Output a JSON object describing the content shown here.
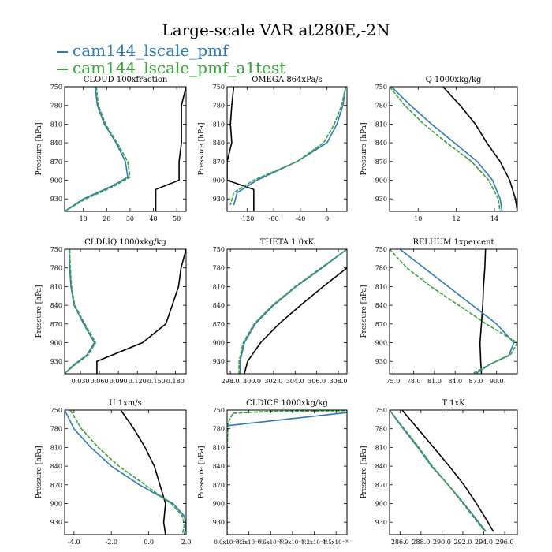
{
  "title": "Large-scale VAR at280E,-2N",
  "legend": [
    {
      "label": "cam144_lscale_pmf",
      "color": "#2b7bba"
    },
    {
      "label": "cam144_lscale_pmf_a1test",
      "color": "#3aa23a"
    }
  ],
  "colors": {
    "ref": "#000000",
    "pmf": "#2b7bba",
    "a1test": "#3aa23a"
  },
  "chart_data": [
    {
      "type": "line",
      "title": "CLOUD  100xfraction",
      "ylabel": "Pressure [hPa]",
      "ylim": [
        950,
        750
      ],
      "xlim": [
        2,
        54
      ],
      "xticks": [
        10,
        20,
        30,
        40,
        50
      ],
      "xticklabels": [
        "10",
        "20",
        "30",
        "40",
        "50"
      ],
      "yticks": [
        750,
        780,
        810,
        840,
        870,
        900,
        930
      ],
      "grid": false,
      "series": [
        {
          "name": "ref",
          "y": [
            750,
            780,
            810,
            840,
            870,
            900,
            915,
            930,
            950
          ],
          "x": [
            54,
            52,
            52,
            52,
            51,
            51,
            41,
            41,
            41
          ]
        },
        {
          "name": "pmf",
          "y": [
            750,
            780,
            810,
            840,
            870,
            895,
            910,
            930,
            950
          ],
          "x": [
            15,
            16,
            19,
            24,
            28,
            29,
            22,
            10,
            2
          ]
        },
        {
          "name": "a1test",
          "y": [
            750,
            780,
            810,
            840,
            870,
            895,
            910,
            930,
            950
          ],
          "x": [
            15.5,
            16.5,
            19.5,
            24.5,
            29,
            30,
            23,
            11,
            2
          ]
        }
      ]
    },
    {
      "type": "line",
      "title": "OMEGA  864xPa/s",
      "ylabel": "Pressure [hPa]",
      "ylim": [
        950,
        750
      ],
      "xlim": [
        -150,
        30
      ],
      "xticks": [
        -120,
        -80,
        -40,
        0
      ],
      "xticklabels": [
        "-120",
        "-80",
        "-40",
        "0"
      ],
      "yticks": [
        750,
        780,
        810,
        840,
        870,
        900,
        930
      ],
      "grid": false,
      "series": [
        {
          "name": "ref",
          "y": [
            750,
            780,
            810,
            840,
            870,
            900,
            915,
            935,
            950
          ],
          "x": [
            -140,
            -143,
            -145,
            -143,
            -150,
            -150,
            -110,
            -110,
            -110
          ]
        },
        {
          "name": "pmf",
          "y": [
            750,
            780,
            810,
            840,
            870,
            900,
            920,
            940
          ],
          "x": [
            28,
            24,
            15,
            0,
            -45,
            -105,
            -135,
            -140
          ]
        },
        {
          "name": "a1test",
          "y": [
            750,
            780,
            810,
            840,
            870,
            900,
            920,
            940
          ],
          "x": [
            28,
            22,
            11,
            -5,
            -45,
            -110,
            -140,
            -145
          ]
        }
      ]
    },
    {
      "type": "line",
      "title": "Q  1000xkg/kg",
      "ylabel": "Pressure [hPa]",
      "ylim": [
        950,
        750
      ],
      "xlim": [
        8.5,
        15.2
      ],
      "xticks": [
        10,
        12,
        14
      ],
      "xticklabels": [
        "10",
        "12",
        "14"
      ],
      "yticks": [
        750,
        780,
        810,
        840,
        870,
        900,
        930
      ],
      "grid": false,
      "series": [
        {
          "name": "ref",
          "y": [
            750,
            780,
            810,
            840,
            870,
            900,
            930,
            950
          ],
          "x": [
            11.3,
            12.2,
            13.0,
            13.6,
            14.3,
            14.8,
            15.1,
            15.2
          ]
        },
        {
          "name": "pmf",
          "y": [
            750,
            780,
            810,
            840,
            870,
            900,
            930,
            950
          ],
          "x": [
            8.6,
            9.6,
            10.7,
            11.9,
            13.1,
            13.9,
            14.3,
            14.4
          ]
        },
        {
          "name": "a1test",
          "y": [
            750,
            780,
            810,
            840,
            870,
            900,
            930,
            950
          ],
          "x": [
            8.5,
            9.3,
            10.3,
            11.5,
            12.8,
            13.7,
            14.2,
            14.3
          ]
        }
      ]
    },
    {
      "type": "line",
      "title": "CLDLIQ  1000xkg/kg",
      "ylabel": "Pressure [hPa]",
      "ylim": [
        950,
        750
      ],
      "xlim": [
        0.005,
        0.197
      ],
      "xticks": [
        0.03,
        0.06,
        0.09,
        0.12,
        0.15,
        0.18
      ],
      "xticklabels": [
        "0.030",
        "0.060",
        "0.090",
        "0.120",
        "0.150",
        "0.180"
      ],
      "yticks": [
        750,
        780,
        810,
        840,
        870,
        900,
        930
      ],
      "grid": false,
      "series": [
        {
          "name": "ref",
          "y": [
            750,
            780,
            810,
            840,
            870,
            900,
            930,
            950
          ],
          "x": [
            0.197,
            0.189,
            0.185,
            0.175,
            0.165,
            0.128,
            0.056,
            0.056
          ]
        },
        {
          "name": "pmf",
          "y": [
            750,
            780,
            810,
            840,
            870,
            900,
            920,
            935,
            950
          ],
          "x": [
            0.012,
            0.013,
            0.015,
            0.02,
            0.035,
            0.052,
            0.04,
            0.02,
            0.005
          ]
        },
        {
          "name": "a1test",
          "y": [
            750,
            780,
            810,
            840,
            870,
            900,
            920,
            935,
            950
          ],
          "x": [
            0.013,
            0.014,
            0.016,
            0.021,
            0.037,
            0.054,
            0.042,
            0.022,
            0.005
          ]
        }
      ]
    },
    {
      "type": "line",
      "title": "THETA  1.0xK",
      "ylabel": "",
      "ylim": [
        950,
        750
      ],
      "xlim": [
        297.7,
        308.8
      ],
      "xticks": [
        298,
        300,
        302,
        304,
        306,
        308
      ],
      "xticklabels": [
        "298.0",
        "300.0",
        "302.0",
        "304.0",
        "306.0",
        "308.0"
      ],
      "yticks": [
        750,
        780,
        810,
        840,
        870,
        900,
        930
      ],
      "grid": false,
      "series": [
        {
          "name": "ref",
          "y": [
            780,
            810,
            840,
            870,
            900,
            930,
            950
          ],
          "x": [
            308.8,
            306.6,
            304.5,
            302.5,
            300.8,
            299.6,
            299.3
          ]
        },
        {
          "name": "pmf",
          "y": [
            750,
            780,
            810,
            840,
            870,
            900,
            930,
            950
          ],
          "x": [
            308.8,
            306.5,
            304.1,
            302.0,
            300.3,
            299.3,
            298.9,
            298.9
          ]
        },
        {
          "name": "a1test",
          "y": [
            750,
            780,
            810,
            840,
            870,
            900,
            930,
            950
          ],
          "x": [
            308.8,
            306.4,
            304.0,
            301.9,
            300.2,
            299.2,
            298.8,
            298.8
          ]
        }
      ]
    },
    {
      "type": "line",
      "title": "RELHUM  1xpercent",
      "ylabel": "Pressure [hPa]",
      "ylim": [
        950,
        750
      ],
      "xlim": [
        74.5,
        93
      ],
      "xticks": [
        75,
        78,
        81,
        84,
        87,
        90
      ],
      "xticklabels": [
        "75.0",
        "78.0",
        "81.0",
        "84.0",
        "87.0",
        "90.0"
      ],
      "yticks": [
        750,
        780,
        810,
        840,
        870,
        900,
        930
      ],
      "grid": false,
      "series": [
        {
          "name": "ref",
          "y": [
            750,
            780,
            810,
            840,
            870,
            900,
            930,
            950
          ],
          "x": [
            88.4,
            88.3,
            88.1,
            88.0,
            87.8,
            87.6,
            87.7,
            87.8
          ]
        },
        {
          "name": "pmf",
          "y": [
            750,
            780,
            810,
            840,
            870,
            900,
            920,
            935,
            950
          ],
          "x": [
            76.0,
            79.5,
            83.0,
            86.5,
            90.0,
            92.5,
            91.8,
            89.0,
            87.0
          ]
        },
        {
          "name": "a1test",
          "y": [
            750,
            780,
            810,
            840,
            870,
            900,
            920,
            935,
            950
          ],
          "x": [
            74.5,
            77.0,
            80.5,
            84.5,
            88.5,
            93.0,
            92.0,
            89.0,
            86.5
          ]
        }
      ]
    },
    {
      "type": "line",
      "title": "U  1xm/s",
      "ylabel": "Pressure [hPa]",
      "ylim": [
        950,
        750
      ],
      "xlim": [
        -4.5,
        2.0
      ],
      "xticks": [
        -4,
        -2,
        0,
        2
      ],
      "xticklabels": [
        "-4.0",
        "-2.0",
        "0.0",
        "2.0"
      ],
      "yticks": [
        750,
        780,
        810,
        840,
        870,
        900,
        930
      ],
      "grid": false,
      "series": [
        {
          "name": "ref",
          "y": [
            750,
            780,
            810,
            840,
            870,
            900,
            930,
            950
          ],
          "x": [
            -1.5,
            -0.8,
            -0.2,
            0.3,
            0.6,
            0.9,
            0.8,
            0.9
          ]
        },
        {
          "name": "pmf",
          "y": [
            750,
            780,
            810,
            840,
            870,
            900,
            920,
            935,
            950
          ],
          "x": [
            -4.5,
            -4.0,
            -3.1,
            -2.0,
            -0.5,
            1.3,
            1.9,
            2.0,
            1.9
          ]
        },
        {
          "name": "a1test",
          "y": [
            750,
            780,
            810,
            840,
            870,
            900,
            920,
            935,
            950
          ],
          "x": [
            -4.2,
            -3.6,
            -2.7,
            -1.6,
            -0.2,
            1.2,
            1.8,
            1.9,
            1.8
          ]
        }
      ]
    },
    {
      "type": "line",
      "title": "CLDICE  1000xkg/kg",
      "ylabel": "Pressure [hPa]",
      "ylim": [
        950,
        750
      ],
      "xlim": [
        0,
        1.65e-30
      ],
      "xticks": [
        0,
        3e-31,
        6e-31,
        9e-31,
        1.2e-30,
        1.5e-30
      ],
      "xticklabels": [
        "0.0x10⁻³⁰",
        "0.3x10⁻³⁰",
        "0.6x10⁻³⁰",
        "0.9x10⁻³⁰",
        "1.2x10⁻³⁰",
        "1.5x10⁻³⁰"
      ],
      "yticks": [
        750,
        780,
        810,
        840,
        870,
        900,
        930
      ],
      "grid": false,
      "series": [
        {
          "name": "pmf",
          "y": [
            775,
            754
          ],
          "x": [
            0,
            1.65e-30
          ]
        },
        {
          "name": "a1test",
          "y": [
            950,
            810,
            770,
            755,
            752,
            751
          ],
          "x": [
            0,
            0,
            1.5e-32,
            8e-32,
            6e-31,
            1.65e-30
          ]
        }
      ]
    },
    {
      "type": "line",
      "title": "T  1xK",
      "ylabel": "Pressure [hPa]",
      "ylim": [
        950,
        750
      ],
      "xlim": [
        285,
        297.2
      ],
      "xticks": [
        286,
        288,
        290,
        292,
        294,
        296
      ],
      "xticklabels": [
        "286.0",
        "288.0",
        "290.0",
        "292.0",
        "294.0",
        "296.0"
      ],
      "yticks": [
        750,
        780,
        810,
        840,
        870,
        900,
        930
      ],
      "grid": false,
      "series": [
        {
          "name": "ref",
          "y": [
            750,
            780,
            810,
            840,
            870,
            900,
            930,
            945
          ],
          "x": [
            286.2,
            287.7,
            289.2,
            290.7,
            292.1,
            293.3,
            294.4,
            294.9
          ]
        },
        {
          "name": "pmf",
          "y": [
            750,
            780,
            810,
            840,
            870,
            900,
            930,
            945
          ],
          "x": [
            285.0,
            286.3,
            287.7,
            289.0,
            290.6,
            292.1,
            293.5,
            294.2
          ]
        },
        {
          "name": "a1test",
          "y": [
            750,
            780,
            810,
            840,
            870,
            900,
            930,
            945
          ],
          "x": [
            285.0,
            286.4,
            287.8,
            289.1,
            290.6,
            292.0,
            293.4,
            294.1
          ]
        }
      ]
    }
  ]
}
